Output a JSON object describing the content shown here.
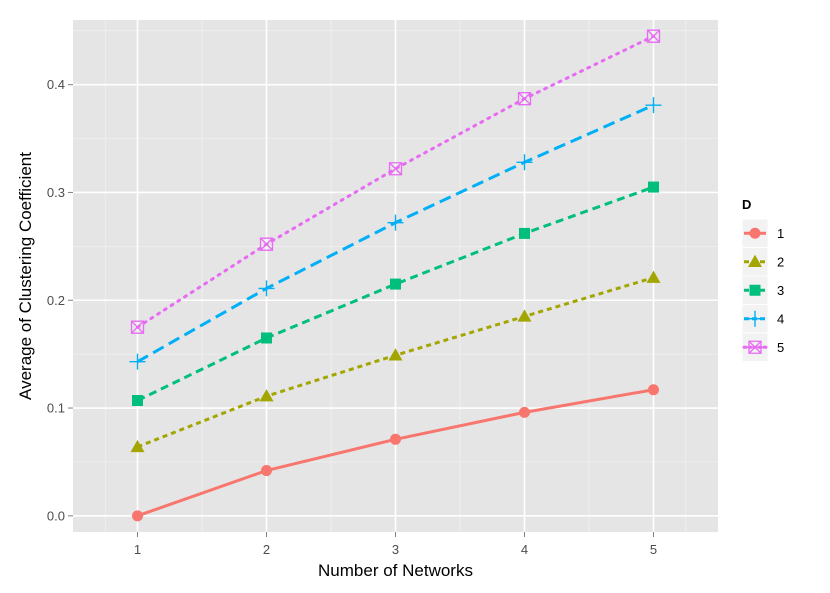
{
  "chart_data": {
    "type": "line",
    "xlabel": "Number of Networks",
    "ylabel": "Average of Clustering Coefficient",
    "x": [
      1,
      2,
      3,
      4,
      5
    ],
    "xlim": [
      0.5,
      5.5
    ],
    "ylim": [
      -0.015,
      0.46
    ],
    "yticks": [
      0.0,
      0.1,
      0.2,
      0.3,
      0.4
    ],
    "ytick_labels": [
      "0.0",
      "0.1",
      "0.2",
      "0.3",
      "0.4"
    ],
    "xtick_labels": [
      "1",
      "2",
      "3",
      "4",
      "5"
    ],
    "grid": true,
    "legend": {
      "title": "D",
      "placement": "right"
    },
    "series": [
      {
        "name": "1",
        "values": [
          0.0,
          0.042,
          0.071,
          0.096,
          0.117
        ],
        "color": "#F8766D",
        "marker": "circle",
        "dash": "solid"
      },
      {
        "name": "2",
        "values": [
          0.064,
          0.111,
          0.149,
          0.185,
          0.221
        ],
        "color": "#A3A500",
        "marker": "triangle",
        "dash": "short-dash"
      },
      {
        "name": "3",
        "values": [
          0.107,
          0.165,
          0.215,
          0.262,
          0.305
        ],
        "color": "#00BF7D",
        "marker": "square",
        "dash": "dash"
      },
      {
        "name": "4",
        "values": [
          0.143,
          0.211,
          0.272,
          0.328,
          0.381
        ],
        "color": "#00B0F6",
        "marker": "plus",
        "dash": "long-dash"
      },
      {
        "name": "5",
        "values": [
          0.175,
          0.252,
          0.322,
          0.387,
          0.445
        ],
        "color": "#E76BF3",
        "marker": "boxed-x",
        "dash": "dotted"
      }
    ]
  }
}
